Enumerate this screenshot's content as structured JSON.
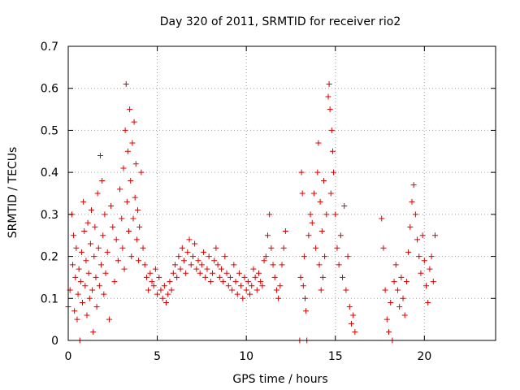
{
  "chart_data": {
    "type": "scatter",
    "title": "Day 320 of 2011, SRMTID for receiver rio2",
    "xlabel": "GPS time / hours",
    "ylabel": "SRMTID / TECUs",
    "xlim": [
      0,
      24
    ],
    "ylim": [
      0,
      0.7
    ],
    "xticks": [
      0,
      5,
      10,
      15,
      20
    ],
    "yticks": [
      0,
      0.1,
      0.2,
      0.3,
      0.4,
      0.5,
      0.6,
      0.7
    ],
    "grid": true,
    "marker": "+",
    "series": [
      {
        "name": "rio2",
        "color": "#dd0000",
        "x": [
          0.0,
          0.1,
          0.2,
          0.25,
          0.3,
          0.35,
          0.4,
          0.45,
          0.5,
          0.55,
          0.6,
          0.65,
          0.7,
          0.75,
          0.8,
          0.85,
          0.9,
          0.95,
          1.0,
          1.05,
          1.1,
          1.15,
          1.2,
          1.25,
          1.3,
          1.35,
          1.4,
          1.45,
          1.5,
          1.55,
          1.6,
          1.65,
          1.7,
          1.75,
          1.8,
          1.85,
          1.9,
          1.95,
          2.0,
          2.05,
          2.1,
          2.2,
          2.3,
          2.4,
          2.5,
          2.6,
          2.7,
          2.8,
          2.9,
          3.0,
          3.05,
          3.1,
          3.15,
          3.2,
          3.25,
          3.3,
          3.35,
          3.4,
          3.45,
          3.5,
          3.55,
          3.6,
          3.65,
          3.7,
          3.75,
          3.8,
          3.85,
          3.9,
          3.95,
          4.0,
          4.1,
          4.2,
          4.3,
          4.4,
          4.5,
          4.6,
          4.7,
          4.8,
          4.9,
          5.0,
          5.1,
          5.2,
          5.3,
          5.4,
          5.5,
          5.6,
          5.7,
          5.8,
          5.9,
          6.0,
          6.1,
          6.2,
          6.3,
          6.4,
          6.5,
          6.6,
          6.7,
          6.8,
          6.9,
          7.0,
          7.1,
          7.2,
          7.3,
          7.4,
          7.5,
          7.6,
          7.7,
          7.8,
          7.9,
          8.0,
          8.1,
          8.2,
          8.3,
          8.4,
          8.5,
          8.6,
          8.7,
          8.8,
          8.9,
          9.0,
          9.1,
          9.2,
          9.3,
          9.4,
          9.5,
          9.6,
          9.7,
          9.8,
          9.9,
          10.0,
          10.1,
          10.2,
          10.3,
          10.4,
          10.5,
          10.6,
          10.7,
          10.8,
          10.9,
          11.0,
          11.1,
          11.2,
          11.3,
          11.4,
          11.5,
          11.6,
          11.7,
          11.8,
          11.9,
          12.0,
          12.1,
          12.2,
          13.0,
          13.05,
          13.1,
          13.15,
          13.2,
          13.25,
          13.3,
          13.35,
          13.4,
          13.5,
          13.6,
          13.7,
          13.8,
          13.9,
          14.0,
          14.05,
          14.1,
          14.15,
          14.2,
          14.25,
          14.3,
          14.35,
          14.4,
          14.5,
          14.6,
          14.65,
          14.7,
          14.75,
          14.8,
          14.85,
          14.9,
          15.0,
          15.1,
          15.2,
          15.3,
          15.4,
          15.5,
          15.6,
          15.7,
          15.8,
          15.9,
          16.0,
          16.1,
          17.6,
          17.7,
          17.8,
          17.9,
          18.0,
          18.1,
          18.2,
          18.3,
          18.4,
          18.5,
          18.6,
          18.7,
          18.8,
          18.9,
          19.0,
          19.1,
          19.2,
          19.3,
          19.4,
          19.5,
          19.6,
          19.7,
          19.8,
          19.9,
          20.0,
          20.1,
          20.2,
          20.3,
          20.4,
          20.5,
          20.6
        ],
        "y": [
          0.08,
          0.12,
          0.3,
          0.18,
          0.25,
          0.07,
          0.15,
          0.22,
          0.05,
          0.11,
          0.17,
          0.0,
          0.14,
          0.21,
          0.09,
          0.33,
          0.26,
          0.13,
          0.19,
          0.06,
          0.28,
          0.16,
          0.1,
          0.23,
          0.31,
          0.12,
          0.02,
          0.2,
          0.27,
          0.15,
          0.08,
          0.35,
          0.22,
          0.13,
          0.44,
          0.18,
          0.38,
          0.25,
          0.11,
          0.3,
          0.16,
          0.21,
          0.05,
          0.32,
          0.27,
          0.14,
          0.24,
          0.19,
          0.36,
          0.29,
          0.22,
          0.41,
          0.17,
          0.5,
          0.61,
          0.33,
          0.45,
          0.26,
          0.55,
          0.38,
          0.2,
          0.47,
          0.29,
          0.52,
          0.34,
          0.42,
          0.24,
          0.31,
          0.19,
          0.27,
          0.4,
          0.22,
          0.18,
          0.15,
          0.12,
          0.16,
          0.14,
          0.13,
          0.17,
          0.11,
          0.15,
          0.12,
          0.1,
          0.13,
          0.09,
          0.11,
          0.14,
          0.12,
          0.16,
          0.18,
          0.15,
          0.2,
          0.17,
          0.22,
          0.19,
          0.16,
          0.21,
          0.24,
          0.18,
          0.2,
          0.23,
          0.17,
          0.19,
          0.16,
          0.18,
          0.21,
          0.15,
          0.17,
          0.2,
          0.14,
          0.16,
          0.19,
          0.22,
          0.18,
          0.15,
          0.17,
          0.14,
          0.2,
          0.16,
          0.13,
          0.15,
          0.12,
          0.18,
          0.14,
          0.11,
          0.16,
          0.13,
          0.1,
          0.15,
          0.12,
          0.14,
          0.11,
          0.13,
          0.17,
          0.15,
          0.12,
          0.16,
          0.14,
          0.13,
          0.19,
          0.2,
          0.25,
          0.3,
          0.22,
          0.18,
          0.15,
          0.12,
          0.1,
          0.13,
          0.18,
          0.22,
          0.26,
          0.0,
          0.15,
          0.4,
          0.35,
          0.13,
          0.2,
          0.1,
          0.07,
          0.0,
          0.25,
          0.3,
          0.28,
          0.35,
          0.22,
          0.4,
          0.47,
          0.18,
          0.33,
          0.12,
          0.26,
          0.15,
          0.38,
          0.2,
          0.3,
          0.58,
          0.61,
          0.55,
          0.35,
          0.5,
          0.45,
          0.4,
          0.3,
          0.22,
          0.18,
          0.25,
          0.15,
          0.32,
          0.12,
          0.2,
          0.08,
          0.04,
          0.06,
          0.02,
          0.29,
          0.22,
          0.12,
          0.05,
          0.02,
          0.09,
          0.0,
          0.14,
          0.18,
          0.12,
          0.08,
          0.15,
          0.1,
          0.06,
          0.14,
          0.21,
          0.27,
          0.33,
          0.37,
          0.3,
          0.24,
          0.2,
          0.16,
          0.25,
          0.19,
          0.13,
          0.09,
          0.17,
          0.2,
          0.14,
          0.25
        ]
      }
    ]
  }
}
